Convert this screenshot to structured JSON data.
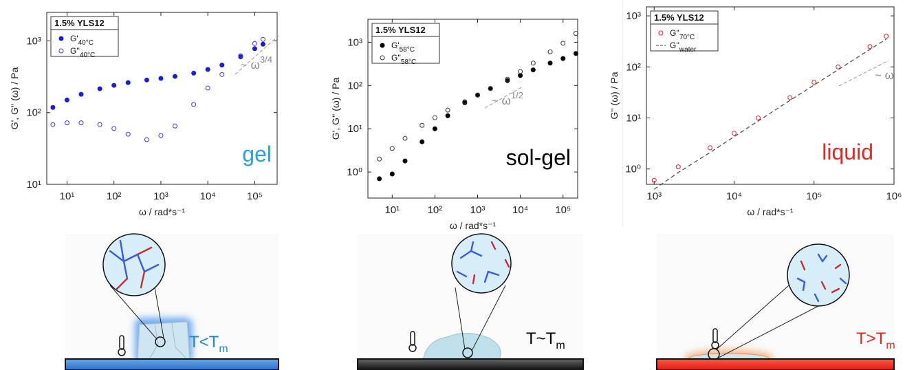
{
  "chart_data": [
    {
      "type": "scatter",
      "xscale": "log",
      "yscale": "log",
      "xlabel": "ω / rad*s⁻¹",
      "ylabel": "G', G'' (ω) / Pa",
      "xlim": [
        3.7,
        300000
      ],
      "ylim": [
        10,
        2500
      ],
      "xticks": [
        {
          "value": 10,
          "label": "10¹"
        },
        {
          "value": 100,
          "label": "10²"
        },
        {
          "value": 1000,
          "label": "10³"
        },
        {
          "value": 10000,
          "label": "10⁴"
        },
        {
          "value": 100000,
          "label": "10⁵"
        }
      ],
      "yticks": [
        {
          "value": 10,
          "label": "10¹"
        },
        {
          "value": 100,
          "label": "10²"
        },
        {
          "value": 1000,
          "label": "10³"
        }
      ],
      "legend": {
        "title": "1.5% YLS12",
        "position": "upper left"
      },
      "annotation": {
        "text": "gel",
        "color": "#2aa3dc"
      },
      "slope_label": {
        "text": "~ ω",
        "exponent": "3/4"
      },
      "x": [
        5,
        10,
        20,
        50,
        100,
        200,
        500,
        1000,
        2000,
        5000,
        10000,
        20000,
        50000,
        100000,
        150000
      ],
      "series": [
        {
          "name": "G'",
          "subscript": "40°C",
          "color": "#1c1cd6",
          "marker": "filled",
          "values": [
            118,
            150,
            180,
            215,
            240,
            262,
            285,
            300,
            320,
            355,
            400,
            460,
            600,
            780,
            900
          ]
        },
        {
          "name": "G''",
          "subscript": "40°C",
          "color": "#3a3ad8",
          "marker": "open",
          "values": [
            68,
            72,
            72,
            68,
            60,
            50,
            42,
            48,
            65,
            130,
            220,
            340,
            620,
            920,
            1050
          ]
        }
      ]
    },
    {
      "type": "scatter",
      "xscale": "log",
      "yscale": "log",
      "xlabel": "ω / rad*s⁻¹",
      "ylabel": "G', G'' (ω) / Pa",
      "xlim": [
        2.7,
        220000
      ],
      "ylim": [
        0.25,
        3400
      ],
      "xticks": [
        {
          "value": 10,
          "label": "10¹"
        },
        {
          "value": 100,
          "label": "10²"
        },
        {
          "value": 1000,
          "label": "10³"
        },
        {
          "value": 10000,
          "label": "10⁴"
        },
        {
          "value": 100000,
          "label": "10⁵"
        }
      ],
      "yticks": [
        {
          "value": 1,
          "label": "10⁰"
        },
        {
          "value": 10,
          "label": "10¹"
        },
        {
          "value": 100,
          "label": "10²"
        },
        {
          "value": 1000,
          "label": "10³"
        }
      ],
      "legend": {
        "title": "1.5% YLS12",
        "position": "upper left"
      },
      "annotation": {
        "text": "sol-gel",
        "color": "#000000"
      },
      "slope_label": {
        "text": "~ ω",
        "exponent": "1/2"
      },
      "x": [
        5,
        10,
        20,
        50,
        100,
        200,
        500,
        1000,
        2000,
        5000,
        10000,
        20000,
        50000,
        100000,
        200000
      ],
      "series": [
        {
          "name": "G'",
          "subscript": "58°C",
          "color": "#000000",
          "marker": "filled",
          "values": [
            0.7,
            0.9,
            1.8,
            5,
            10,
            20,
            40,
            60,
            85,
            130,
            170,
            230,
            330,
            420,
            550
          ]
        },
        {
          "name": "G''",
          "subscript": "58°C",
          "color": "#333333",
          "marker": "open",
          "values": [
            2,
            3.5,
            6,
            12,
            18,
            27,
            42,
            60,
            85,
            140,
            210,
            330,
            600,
            950,
            1600
          ]
        }
      ]
    },
    {
      "type": "scatter",
      "xscale": "log",
      "yscale": "log",
      "xlabel": "ω / rad*s⁻¹",
      "ylabel": "G'' (ω) / Pa",
      "xlim": [
        800,
        1000000
      ],
      "ylim": [
        0.5,
        1500
      ],
      "xticks": [
        {
          "value": 1000,
          "label": "10³"
        },
        {
          "value": 10000,
          "label": "10⁴"
        },
        {
          "value": 100000,
          "label": "10⁵"
        },
        {
          "value": 1000000,
          "label": "10⁶"
        }
      ],
      "yticks": [
        {
          "value": 1,
          "label": "10⁰"
        },
        {
          "value": 10,
          "label": "10¹"
        },
        {
          "value": 100,
          "label": "10²"
        },
        {
          "value": 1000,
          "label": "10³"
        }
      ],
      "legend": {
        "title": "1.5% YLS12",
        "position": "upper left"
      },
      "annotation": {
        "text": "liquid",
        "color": "#e8281e"
      },
      "slope_label": {
        "text": "~ ω",
        "exponent": ""
      },
      "x": [
        1000,
        2000,
        5000,
        10000,
        20000,
        50000,
        100000,
        200000,
        500000,
        800000
      ],
      "series": [
        {
          "name": "G''",
          "subscript": "70°C",
          "color": "#e02020",
          "marker": "open",
          "values": [
            0.6,
            1.1,
            2.6,
            5,
            10,
            25,
            50,
            100,
            250,
            400
          ]
        },
        {
          "name": "G''",
          "subscript": "water",
          "color": "#444444",
          "marker": "dashed",
          "values": [
            0.4,
            0.85,
            2.1,
            4.3,
            8.7,
            22,
            44,
            88,
            220,
            350
          ]
        }
      ]
    }
  ],
  "panels": [
    {
      "label": "T<T",
      "subscript": "m",
      "color": "#1f86d6"
    },
    {
      "label": "T~T",
      "subscript": "m",
      "color": "#000000"
    },
    {
      "label": "T>T",
      "subscript": "m",
      "color": "#e8281e"
    }
  ]
}
